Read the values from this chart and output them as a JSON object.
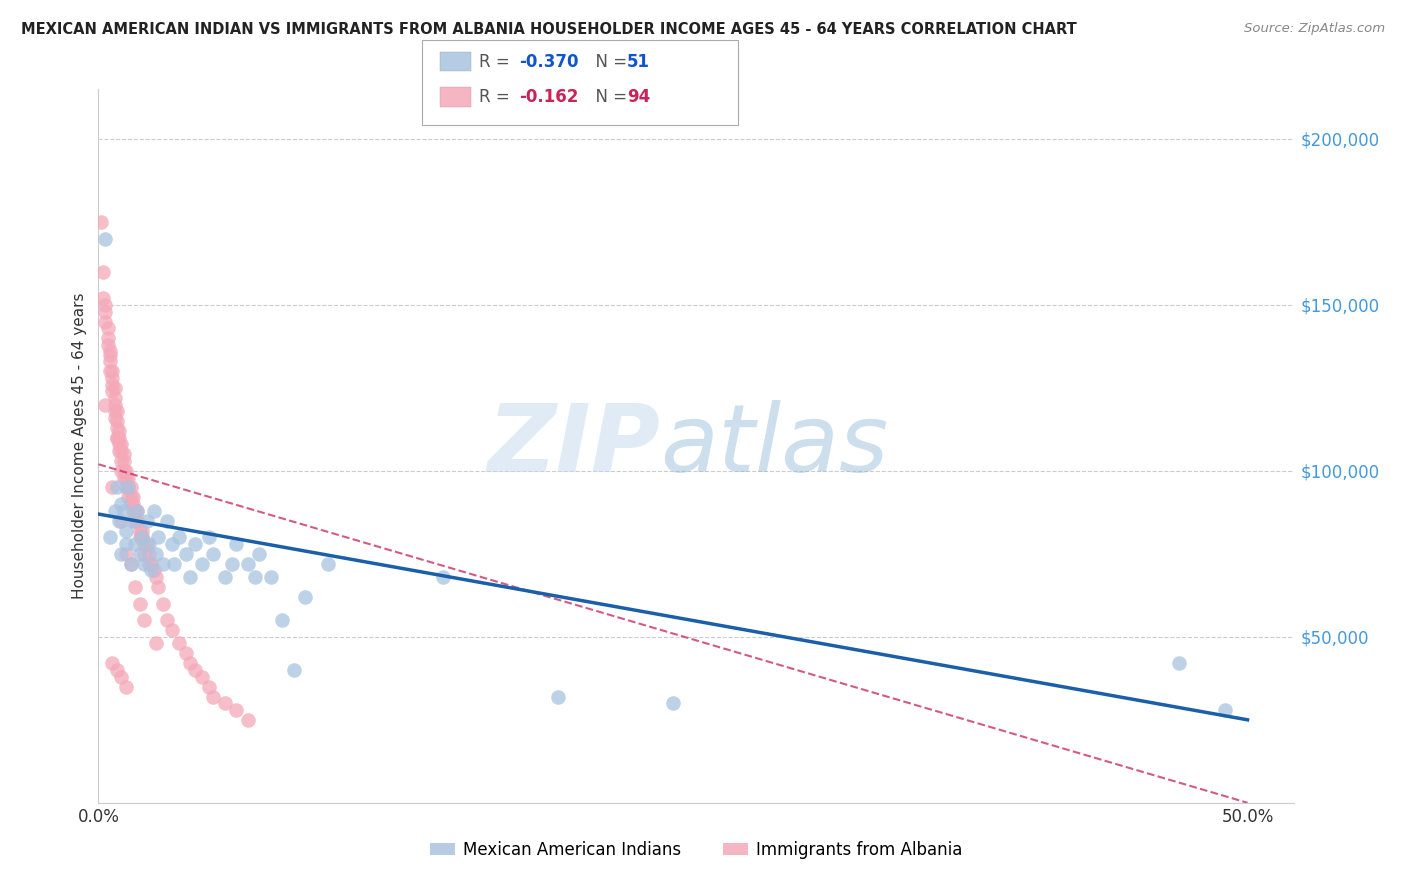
{
  "title": "MEXICAN AMERICAN INDIAN VS IMMIGRANTS FROM ALBANIA HOUSEHOLDER INCOME AGES 45 - 64 YEARS CORRELATION CHART",
  "source": "Source: ZipAtlas.com",
  "ylabel": "Householder Income Ages 45 - 64 years",
  "xlim": [
    0.0,
    0.52
  ],
  "ylim": [
    0,
    215000
  ],
  "yticks": [
    50000,
    100000,
    150000,
    200000
  ],
  "ytick_labels": [
    "$50,000",
    "$100,000",
    "$150,000",
    "$200,000"
  ],
  "xticks": [
    0.0,
    0.1,
    0.2,
    0.3,
    0.4,
    0.5
  ],
  "xtick_labels": [
    "0.0%",
    "",
    "",
    "",
    "",
    "50.0%"
  ],
  "legend_r_blue": "-0.370",
  "legend_n_blue": "51",
  "legend_r_pink": "-0.162",
  "legend_n_pink": "94",
  "legend_label_blue": "Mexican American Indians",
  "legend_label_pink": "Immigrants from Albania",
  "blue_color": "#a8c4e0",
  "pink_color": "#f4a8b8",
  "blue_line_color": "#1a5fa8",
  "pink_line_color": "#c83264",
  "watermark_zip": "ZIP",
  "watermark_atlas": "atlas",
  "blue_scatter_x": [
    0.003,
    0.005,
    0.007,
    0.008,
    0.009,
    0.01,
    0.01,
    0.011,
    0.012,
    0.012,
    0.013,
    0.014,
    0.015,
    0.016,
    0.017,
    0.018,
    0.019,
    0.02,
    0.021,
    0.022,
    0.023,
    0.024,
    0.025,
    0.026,
    0.028,
    0.03,
    0.032,
    0.033,
    0.035,
    0.038,
    0.04,
    0.042,
    0.045,
    0.048,
    0.05,
    0.055,
    0.058,
    0.06,
    0.065,
    0.068,
    0.07,
    0.075,
    0.08,
    0.085,
    0.09,
    0.1,
    0.15,
    0.2,
    0.25,
    0.47,
    0.49
  ],
  "blue_scatter_y": [
    170000,
    80000,
    88000,
    95000,
    85000,
    90000,
    75000,
    88000,
    82000,
    78000,
    95000,
    72000,
    85000,
    78000,
    88000,
    75000,
    80000,
    72000,
    85000,
    78000,
    70000,
    88000,
    75000,
    80000,
    72000,
    85000,
    78000,
    72000,
    80000,
    75000,
    68000,
    78000,
    72000,
    80000,
    75000,
    68000,
    72000,
    78000,
    72000,
    68000,
    75000,
    68000,
    55000,
    40000,
    62000,
    72000,
    68000,
    32000,
    30000,
    42000,
    28000
  ],
  "pink_scatter_x": [
    0.001,
    0.002,
    0.002,
    0.003,
    0.003,
    0.003,
    0.004,
    0.004,
    0.004,
    0.005,
    0.005,
    0.005,
    0.005,
    0.006,
    0.006,
    0.006,
    0.006,
    0.007,
    0.007,
    0.007,
    0.007,
    0.007,
    0.008,
    0.008,
    0.008,
    0.008,
    0.009,
    0.009,
    0.009,
    0.009,
    0.01,
    0.01,
    0.01,
    0.01,
    0.011,
    0.011,
    0.011,
    0.011,
    0.012,
    0.012,
    0.012,
    0.013,
    0.013,
    0.013,
    0.014,
    0.014,
    0.014,
    0.015,
    0.015,
    0.015,
    0.016,
    0.016,
    0.017,
    0.017,
    0.018,
    0.018,
    0.019,
    0.019,
    0.02,
    0.02,
    0.021,
    0.022,
    0.022,
    0.023,
    0.024,
    0.025,
    0.026,
    0.028,
    0.03,
    0.032,
    0.035,
    0.038,
    0.04,
    0.042,
    0.045,
    0.048,
    0.05,
    0.055,
    0.06,
    0.065,
    0.003,
    0.006,
    0.008,
    0.01,
    0.012,
    0.014,
    0.016,
    0.018,
    0.02,
    0.025,
    0.006,
    0.008,
    0.01,
    0.012
  ],
  "pink_scatter_y": [
    175000,
    160000,
    152000,
    150000,
    148000,
    145000,
    143000,
    140000,
    138000,
    136000,
    135000,
    133000,
    130000,
    130000,
    128000,
    126000,
    124000,
    125000,
    122000,
    120000,
    118000,
    116000,
    118000,
    115000,
    113000,
    110000,
    112000,
    110000,
    108000,
    106000,
    108000,
    106000,
    103000,
    100000,
    105000,
    103000,
    100000,
    98000,
    100000,
    98000,
    95000,
    98000,
    95000,
    92000,
    95000,
    92000,
    90000,
    92000,
    90000,
    88000,
    88000,
    85000,
    88000,
    85000,
    82000,
    80000,
    82000,
    80000,
    78000,
    75000,
    78000,
    75000,
    72000,
    72000,
    70000,
    68000,
    65000,
    60000,
    55000,
    52000,
    48000,
    45000,
    42000,
    40000,
    38000,
    35000,
    32000,
    30000,
    28000,
    25000,
    120000,
    95000,
    110000,
    85000,
    75000,
    72000,
    65000,
    60000,
    55000,
    48000,
    42000,
    40000,
    38000,
    35000
  ],
  "blue_line_x": [
    0.0,
    0.5
  ],
  "blue_line_y": [
    87000,
    25000
  ],
  "pink_line_x": [
    0.0,
    0.5
  ],
  "pink_line_y": [
    102000,
    0
  ]
}
